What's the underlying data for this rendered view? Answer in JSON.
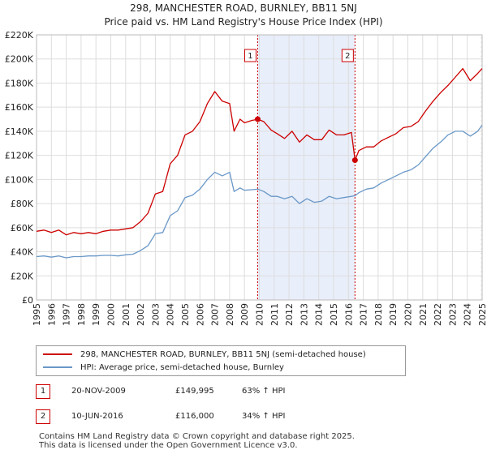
{
  "title_line1": "298, MANCHESTER ROAD, BURNLEY, BB11 5NJ",
  "title_line2": "Price paid vs. HM Land Registry's House Price Index (HPI)",
  "colors": {
    "property": "#cc0000",
    "hpi": "#6a98c8",
    "shade": "#e8eefa",
    "grid": "#dddddd"
  },
  "chart_data": {
    "type": "line",
    "xlim": [
      1995,
      2025
    ],
    "ylim": [
      0,
      220000
    ],
    "x_ticks": [
      "1995",
      "1996",
      "1997",
      "1998",
      "1999",
      "2000",
      "2001",
      "2002",
      "2003",
      "2004",
      "2005",
      "2006",
      "2007",
      "2008",
      "2009",
      "2010",
      "2011",
      "2012",
      "2013",
      "2014",
      "2015",
      "2016",
      "2017",
      "2018",
      "2019",
      "2020",
      "2021",
      "2022",
      "2023",
      "2024",
      "2025"
    ],
    "y_ticks": [
      {
        "value": 0,
        "label": "£0"
      },
      {
        "value": 20000,
        "label": "£20K"
      },
      {
        "value": 40000,
        "label": "£40K"
      },
      {
        "value": 60000,
        "label": "£60K"
      },
      {
        "value": 80000,
        "label": "£80K"
      },
      {
        "value": 100000,
        "label": "£100K"
      },
      {
        "value": 120000,
        "label": "£120K"
      },
      {
        "value": 140000,
        "label": "£140K"
      },
      {
        "value": 160000,
        "label": "£160K"
      },
      {
        "value": 180000,
        "label": "£180K"
      },
      {
        "value": 200000,
        "label": "£200K"
      },
      {
        "value": 220000,
        "label": "£220K"
      }
    ],
    "series": [
      {
        "name": "298, MANCHESTER ROAD, BURNLEY, BB11 5NJ (semi-detached house)",
        "color": "#cc0000",
        "x": [
          1995,
          1995.5,
          1996,
          1996.5,
          1997,
          1997.5,
          1998,
          1998.5,
          1999,
          1999.5,
          2000,
          2000.5,
          2001,
          2001.5,
          2002,
          2002.5,
          2003,
          2003.5,
          2004,
          2004.5,
          2005,
          2005.5,
          2006,
          2006.5,
          2007,
          2007.5,
          2008,
          2008.3,
          2008.7,
          2009,
          2009.5,
          2009.9,
          2010.3,
          2010.8,
          2011.2,
          2011.7,
          2012.2,
          2012.7,
          2013.2,
          2013.7,
          2014.2,
          2014.7,
          2015.2,
          2015.7,
          2016.2,
          2016.44,
          2016.7,
          2017.2,
          2017.7,
          2018.2,
          2018.7,
          2019.2,
          2019.7,
          2020.2,
          2020.7,
          2021.2,
          2021.7,
          2022.2,
          2022.7,
          2023.2,
          2023.7,
          2024.2,
          2024.7,
          2025
        ],
        "values": [
          57000,
          58000,
          56000,
          58000,
          54000,
          56000,
          55000,
          56000,
          55000,
          57000,
          58000,
          58000,
          59000,
          60000,
          65000,
          72000,
          88000,
          90000,
          113000,
          120000,
          137000,
          140000,
          148000,
          163000,
          173000,
          165000,
          163000,
          140000,
          150000,
          147000,
          149000,
          149995,
          148000,
          141000,
          138000,
          134000,
          140000,
          131000,
          137000,
          133000,
          133000,
          141000,
          137000,
          137000,
          139000,
          116000,
          124000,
          127000,
          127000,
          132000,
          135000,
          138000,
          143000,
          144000,
          148000,
          157000,
          165000,
          172000,
          178000,
          185000,
          192000,
          182000,
          188000,
          192000
        ]
      },
      {
        "name": "HPI: Average price, semi-detached house, Burnley",
        "color": "#6a98c8",
        "x": [
          1995,
          1995.5,
          1996,
          1996.5,
          1997,
          1997.5,
          1998,
          1998.5,
          1999,
          1999.5,
          2000,
          2000.5,
          2001,
          2001.5,
          2002,
          2002.5,
          2003,
          2003.5,
          2004,
          2004.5,
          2005,
          2005.5,
          2006,
          2006.5,
          2007,
          2007.5,
          2008,
          2008.3,
          2008.7,
          2009,
          2009.5,
          2009.9,
          2010.3,
          2010.8,
          2011.2,
          2011.7,
          2012.2,
          2012.7,
          2013.2,
          2013.7,
          2014.2,
          2014.7,
          2015.2,
          2015.7,
          2016.2,
          2016.44,
          2016.7,
          2017.2,
          2017.7,
          2018.2,
          2018.7,
          2019.2,
          2019.7,
          2020.2,
          2020.7,
          2021.2,
          2021.7,
          2022.2,
          2022.7,
          2023.2,
          2023.7,
          2024.2,
          2024.7,
          2025
        ],
        "values": [
          36000,
          36500,
          35500,
          36500,
          35000,
          36000,
          36000,
          36500,
          36500,
          37000,
          37000,
          36500,
          37500,
          38000,
          41000,
          45000,
          55000,
          56000,
          70000,
          74000,
          85000,
          87000,
          92000,
          100000,
          106000,
          103000,
          106000,
          90000,
          93000,
          91000,
          91500,
          92000,
          90000,
          86000,
          86000,
          84000,
          86000,
          80000,
          84000,
          81000,
          82000,
          86000,
          84000,
          85000,
          86000,
          86500,
          89000,
          92000,
          93000,
          97000,
          100000,
          103000,
          106000,
          108000,
          112000,
          119000,
          126000,
          131000,
          137000,
          140000,
          140000,
          136000,
          140000,
          145000
        ]
      }
    ],
    "sales": [
      {
        "num": "1",
        "x": 2009.89,
        "value": 149995,
        "date": "20-NOV-2009",
        "price": "£149,995",
        "hpi": "63% ↑ HPI"
      },
      {
        "num": "2",
        "x": 2016.44,
        "value": 116000,
        "date": "10-JUN-2016",
        "price": "£116,000",
        "hpi": "34% ↑ HPI"
      }
    ],
    "shade_range": [
      2009.89,
      2016.44
    ],
    "hatch_from": 2024.9
  },
  "footer_line1": "Contains HM Land Registry data © Crown copyright and database right 2025.",
  "footer_line2": "This data is licensed under the Open Government Licence v3.0."
}
